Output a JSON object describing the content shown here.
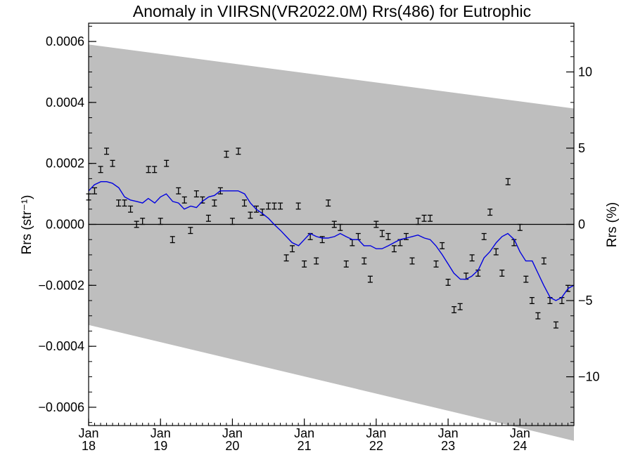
{
  "chart_data": {
    "type": "scatter",
    "title": "Anomaly in VIIRSN(VR2022.0M) Rrs(486) for Eutrophic",
    "ylabel": "Rrs (str⁻¹)",
    "y2label": "Rrs (%)",
    "ylim": [
      -0.00066,
      0.00066
    ],
    "y2lim": [
      -13.2,
      13.2
    ],
    "xlim": [
      2018.0,
      2024.75
    ],
    "grid": false,
    "y_ticks": [
      {
        "v": 0.0006,
        "label": "0.0006"
      },
      {
        "v": 0.0004,
        "label": "0.0004"
      },
      {
        "v": 0.0002,
        "label": "0.0002"
      },
      {
        "v": 0.0,
        "label": "0.0000"
      },
      {
        "v": -0.0002,
        "label": "−0.0002"
      },
      {
        "v": -0.0004,
        "label": "−0.0004"
      },
      {
        "v": -0.0006,
        "label": "−0.0006"
      }
    ],
    "y2_ticks": [
      {
        "v": 10,
        "label": "10"
      },
      {
        "v": 5,
        "label": "5"
      },
      {
        "v": 0,
        "label": "0"
      },
      {
        "v": -5,
        "label": "−5"
      },
      {
        "v": -10,
        "label": "−10"
      }
    ],
    "x_ticks": [
      {
        "v": 2018,
        "month": "Jan",
        "year": "18"
      },
      {
        "v": 2019,
        "month": "Jan",
        "year": "19"
      },
      {
        "v": 2020,
        "month": "Jan",
        "year": "20"
      },
      {
        "v": 2021,
        "month": "Jan",
        "year": "21"
      },
      {
        "v": 2022,
        "month": "Jan",
        "year": "22"
      },
      {
        "v": 2023,
        "month": "Jan",
        "year": "23"
      },
      {
        "v": 2024,
        "month": "Jan",
        "year": "24"
      }
    ],
    "band": {
      "x": [
        2018.0,
        2024.75
      ],
      "upper": [
        0.00059,
        0.00038
      ],
      "lower": [
        -0.00033,
        -0.00071
      ],
      "color": "#bebebe"
    },
    "points": {
      "x": [
        2018.0,
        2018.083,
        2018.167,
        2018.25,
        2018.333,
        2018.417,
        2018.5,
        2018.583,
        2018.667,
        2018.75,
        2018.833,
        2018.917,
        2019.0,
        2019.083,
        2019.167,
        2019.25,
        2019.333,
        2019.417,
        2019.5,
        2019.583,
        2019.667,
        2019.75,
        2019.833,
        2019.917,
        2020.0,
        2020.083,
        2020.167,
        2020.25,
        2020.333,
        2020.417,
        2020.5,
        2020.583,
        2020.667,
        2020.75,
        2020.833,
        2020.917,
        2021.0,
        2021.083,
        2021.167,
        2021.25,
        2021.333,
        2021.417,
        2021.5,
        2021.583,
        2021.667,
        2021.75,
        2021.833,
        2021.917,
        2022.0,
        2022.083,
        2022.167,
        2022.25,
        2022.333,
        2022.417,
        2022.5,
        2022.583,
        2022.667,
        2022.75,
        2022.833,
        2022.917,
        2023.0,
        2023.083,
        2023.167,
        2023.25,
        2023.333,
        2023.417,
        2023.5,
        2023.583,
        2023.667,
        2023.75,
        2023.833,
        2023.917,
        2024.0,
        2024.083,
        2024.167,
        2024.25,
        2024.333,
        2024.417,
        2024.5,
        2024.583,
        2024.667
      ],
      "y": [
        9e-05,
        0.00011,
        0.00018,
        0.00024,
        0.0002,
        7e-05,
        7e-05,
        5e-05,
        0.0,
        1e-05,
        0.00018,
        0.00018,
        1e-05,
        0.0002,
        -5e-05,
        0.00011,
        8e-05,
        -2e-05,
        0.0001,
        8e-05,
        2e-05,
        7e-05,
        0.00011,
        0.00023,
        1e-05,
        0.00024,
        7e-05,
        3e-05,
        5e-05,
        4e-05,
        6e-05,
        6e-05,
        6e-05,
        -0.00011,
        -8e-05,
        6e-05,
        -0.00013,
        -4e-05,
        -0.00012,
        -5e-05,
        7e-05,
        0.0,
        -1e-05,
        -0.00013,
        -6e-05,
        -4e-05,
        -0.00012,
        -0.00018,
        0.0,
        -3e-05,
        -4e-05,
        -8e-05,
        -6e-05,
        -4e-05,
        -0.00012,
        1e-05,
        2e-05,
        2e-05,
        -0.00013,
        -7e-05,
        -0.00019,
        -0.00028,
        -0.00027,
        -0.00017,
        -0.00011,
        -0.00016,
        -4e-05,
        4e-05,
        -9e-05,
        -0.00016,
        0.00014,
        -6e-05,
        -1e-05,
        -0.00018,
        -0.00025,
        -0.0003,
        -0.00012,
        -0.00025,
        -0.00033,
        -0.00025,
        -0.00021
      ],
      "err": 1e-05
    },
    "series": [
      {
        "color": "#0000e0",
        "x": [
          2018.0,
          2018.08,
          2018.17,
          2018.25,
          2018.33,
          2018.42,
          2018.5,
          2018.58,
          2018.67,
          2018.75,
          2018.83,
          2018.92,
          2019.0,
          2019.08,
          2019.17,
          2019.25,
          2019.33,
          2019.42,
          2019.5,
          2019.58,
          2019.67,
          2019.75,
          2019.83,
          2019.92,
          2020.0,
          2020.08,
          2020.17,
          2020.25,
          2020.33,
          2020.42,
          2020.5,
          2020.58,
          2020.67,
          2020.75,
          2020.83,
          2020.92,
          2021.0,
          2021.08,
          2021.17,
          2021.25,
          2021.33,
          2021.42,
          2021.5,
          2021.58,
          2021.67,
          2021.75,
          2021.83,
          2021.92,
          2022.0,
          2022.08,
          2022.17,
          2022.25,
          2022.33,
          2022.42,
          2022.5,
          2022.58,
          2022.67,
          2022.75,
          2022.83,
          2022.92,
          2023.0,
          2023.08,
          2023.17,
          2023.25,
          2023.33,
          2023.42,
          2023.5,
          2023.58,
          2023.67,
          2023.75,
          2023.83,
          2023.92,
          2024.0,
          2024.08,
          2024.17,
          2024.25,
          2024.33,
          2024.42,
          2024.5,
          2024.58,
          2024.67,
          2024.75
        ],
        "y": [
          0.00011,
          0.00013,
          0.00014,
          0.00014,
          0.000135,
          0.00012,
          9e-05,
          8e-05,
          7.5e-05,
          7e-05,
          8.5e-05,
          7e-05,
          9e-05,
          0.0001,
          7.5e-05,
          7e-05,
          5e-05,
          6e-05,
          5.5e-05,
          7.5e-05,
          9e-05,
          9.5e-05,
          0.00011,
          0.00011,
          0.00011,
          0.00011,
          0.0001,
          7e-05,
          5e-05,
          3.5e-05,
          2e-05,
          0.0,
          -2e-05,
          -4e-05,
          -6e-05,
          -7e-05,
          -5e-05,
          -3e-05,
          -4e-05,
          -4.5e-05,
          -4.5e-05,
          -4e-05,
          -3e-05,
          -4e-05,
          -5e-05,
          -5e-05,
          -7e-05,
          -7e-05,
          -8e-05,
          -8e-05,
          -7e-05,
          -6e-05,
          -5e-05,
          -4.5e-05,
          -4e-05,
          -3.5e-05,
          -4.5e-05,
          -5e-05,
          -7e-05,
          -0.0001,
          -0.00013,
          -0.00016,
          -0.00018,
          -0.00018,
          -0.00017,
          -0.00015,
          -0.00011,
          -9e-05,
          -6e-05,
          -4e-05,
          -3e-05,
          -5e-05,
          -9e-05,
          -0.00012,
          -0.00012,
          -0.00016,
          -0.0002,
          -0.00024,
          -0.00025,
          -0.00024,
          -0.00021,
          -0.0002
        ]
      }
    ]
  }
}
